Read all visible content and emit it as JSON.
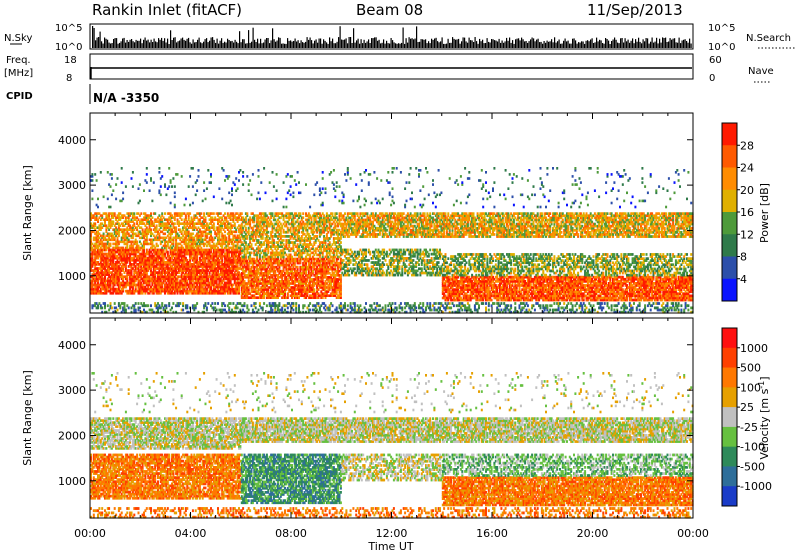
{
  "header": {
    "station": "Rankin Inlet (fitACF)",
    "beam": "Beam 08",
    "date": "11/Sep/2013"
  },
  "top_panels": {
    "nsky_label": "N.Sky",
    "nsearch_label": "N.Search",
    "nsky_ticks": [
      "10^5",
      "10^0"
    ],
    "nsearch_ticks": [
      "10^5",
      "10^0"
    ],
    "freq_label_1": "Freq.",
    "freq_label_2": "[MHz]",
    "freq_ticks": [
      "18",
      "8"
    ],
    "nave_label": "Nave",
    "nave_ticks": [
      "60",
      "0"
    ],
    "cpid_label": "CPID",
    "cpid_value": "N/A -3350"
  },
  "colors": {
    "power": [
      "#0a14ff",
      "#2c4faa",
      "#2f7a4a",
      "#4e9a3a",
      "#e0b000",
      "#ff8c00",
      "#ff5a00",
      "#ff1a00"
    ],
    "velocity": [
      "#1a3cc8",
      "#2e6e9a",
      "#2e8a5a",
      "#66c040",
      "#c0c0c0",
      "#e6a000",
      "#ff7800",
      "#ff4000",
      "#ff1010"
    ],
    "ground_scatter": "#b8b8b8"
  },
  "chart_data": [
    {
      "type": "heatmap",
      "name": "power-panel",
      "ylabel": "Slant Range [km]",
      "xlabel": "Time UT",
      "xlim": [
        "00:00",
        "24:00"
      ],
      "ylim": [
        180,
        4590
      ],
      "x_ticks": [
        "00:00",
        "04:00",
        "08:00",
        "12:00",
        "16:00",
        "20:00",
        "00:00"
      ],
      "y_ticks": [
        1000,
        2000,
        3000,
        4000
      ],
      "colorbar": {
        "label": "Power [dB]",
        "ticks": [
          "4",
          "8",
          "12",
          "16",
          "20",
          "24",
          "28"
        ],
        "range": [
          0,
          30
        ]
      },
      "bands": [
        {
          "t0": 0.0,
          "t1": 24.0,
          "r0": 180,
          "r1": 420,
          "level": 10,
          "density": 0.35
        },
        {
          "t0": 0.0,
          "t1": 6.0,
          "r0": 600,
          "r1": 1600,
          "level": 26,
          "density": 0.85
        },
        {
          "t0": 0.0,
          "t1": 6.0,
          "r0": 1600,
          "r1": 2400,
          "level": 20,
          "density": 0.6
        },
        {
          "t0": 6.0,
          "t1": 10.0,
          "r0": 500,
          "r1": 1400,
          "level": 24,
          "density": 0.8
        },
        {
          "t0": 6.0,
          "t1": 10.0,
          "r0": 1400,
          "r1": 2400,
          "level": 18,
          "density": 0.6
        },
        {
          "t0": 10.0,
          "t1": 14.0,
          "r0": 1000,
          "r1": 1600,
          "level": 14,
          "density": 0.55
        },
        {
          "t0": 10.0,
          "t1": 24.0,
          "r0": 1850,
          "r1": 2400,
          "level": 18,
          "density": 0.75
        },
        {
          "t0": 14.0,
          "t1": 24.0,
          "r0": 450,
          "r1": 1000,
          "level": 25,
          "density": 0.85
        },
        {
          "t0": 14.0,
          "t1": 24.0,
          "r0": 1000,
          "r1": 1500,
          "level": 14,
          "density": 0.55
        },
        {
          "t0": 0.0,
          "t1": 24.0,
          "r0": 2500,
          "r1": 3400,
          "level": 8,
          "density": 0.05
        }
      ]
    },
    {
      "type": "heatmap",
      "name": "velocity-panel",
      "ylabel": "Slant Range [km]",
      "xlabel": "Time UT",
      "xlim": [
        "00:00",
        "24:00"
      ],
      "ylim": [
        180,
        4590
      ],
      "x_ticks": [
        "00:00",
        "04:00",
        "08:00",
        "12:00",
        "16:00",
        "20:00",
        "00:00"
      ],
      "y_ticks": [
        1000,
        2000,
        3000,
        4000
      ],
      "colorbar": {
        "label": "Velocity [m s^-1]",
        "ticks": [
          "1000",
          "500",
          "100",
          "25",
          "-25",
          "-100",
          "-500",
          "-1000"
        ]
      },
      "bands": [
        {
          "t0": 0.0,
          "t1": 24.0,
          "r0": 180,
          "r1": 420,
          "level": 6,
          "density": 0.35
        },
        {
          "t0": 0.0,
          "t1": 6.0,
          "r0": 600,
          "r1": 1600,
          "level": 6,
          "density": 0.8
        },
        {
          "t0": 0.0,
          "t1": 6.0,
          "r0": 1700,
          "r1": 2400,
          "level": 4,
          "density": 0.75
        },
        {
          "t0": 6.0,
          "t1": 10.0,
          "r0": 500,
          "r1": 1600,
          "level": 2,
          "density": 0.75
        },
        {
          "t0": 6.0,
          "t1": 24.0,
          "r0": 1850,
          "r1": 2400,
          "level": 4,
          "density": 0.8
        },
        {
          "t0": 10.0,
          "t1": 14.0,
          "r0": 1000,
          "r1": 1600,
          "level": 4,
          "density": 0.55
        },
        {
          "t0": 14.0,
          "t1": 24.0,
          "r0": 450,
          "r1": 1100,
          "level": 6,
          "density": 0.85
        },
        {
          "t0": 14.0,
          "t1": 24.0,
          "r0": 1100,
          "r1": 1600,
          "level": 3,
          "density": 0.5
        },
        {
          "t0": 0.0,
          "t1": 24.0,
          "r0": 2500,
          "r1": 3400,
          "level": 4,
          "density": 0.05
        }
      ]
    }
  ]
}
